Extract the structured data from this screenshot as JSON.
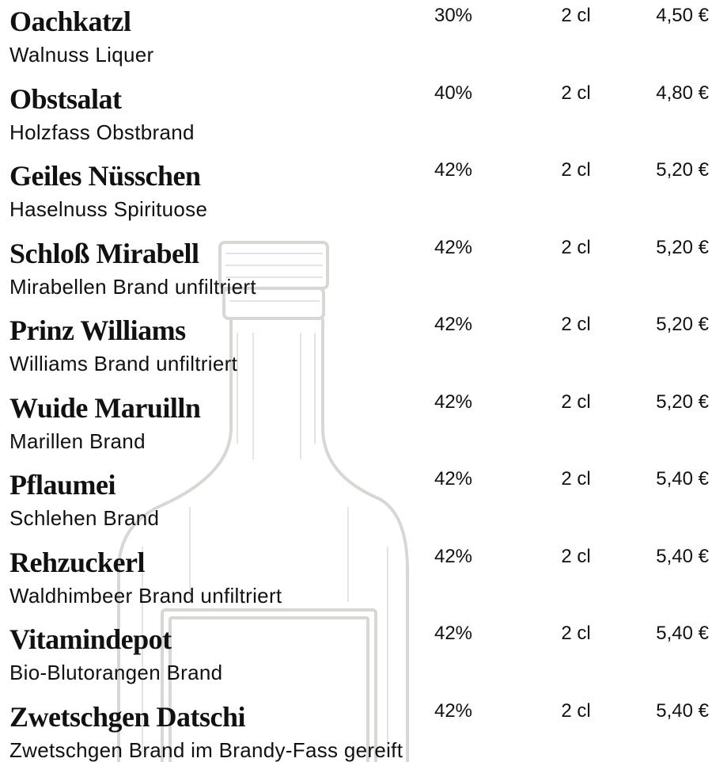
{
  "items": [
    {
      "name": "Oachkatzl",
      "description": "Walnuss Liquer",
      "abv": "30%",
      "volume": "2 cl",
      "price": "4,50 €"
    },
    {
      "name": "Obstsalat",
      "description": "Holzfass Obstbrand",
      "abv": "40%",
      "volume": "2 cl",
      "price": "4,80 €"
    },
    {
      "name": "Geiles Nüsschen",
      "description": "Haselnuss Spirituose",
      "abv": "42%",
      "volume": "2 cl",
      "price": "5,20 €"
    },
    {
      "name": "Schloß Mirabell",
      "description": "Mirabellen Brand unfiltriert",
      "abv": "42%",
      "volume": "2 cl",
      "price": "5,20 €"
    },
    {
      "name": "Prinz Williams",
      "description": "Williams Brand unfiltriert",
      "abv": "42%",
      "volume": "2 cl",
      "price": "5,20 €"
    },
    {
      "name": "Wuide Maruilln",
      "description": "Marillen Brand",
      "abv": "42%",
      "volume": "2 cl",
      "price": "5,20 €"
    },
    {
      "name": "Pflaumei",
      "description": "Schlehen Brand",
      "abv": "42%",
      "volume": "2 cl",
      "price": "5,40 €"
    },
    {
      "name": "Rehzuckerl",
      "description": "Waldhimbeer Brand unfiltriert",
      "abv": "42%",
      "volume": "2 cl",
      "price": "5,40 €"
    },
    {
      "name": "Vitamindepot",
      "description": "Bio-Blutorangen Brand",
      "abv": "42%",
      "volume": "2 cl",
      "price": "5,40 €"
    },
    {
      "name": "Zwetschgen Datschi",
      "description": "Zwetschgen Brand im Brandy-Fass gereift",
      "abv": "42%",
      "volume": "2 cl",
      "price": "5,40 €"
    }
  ]
}
